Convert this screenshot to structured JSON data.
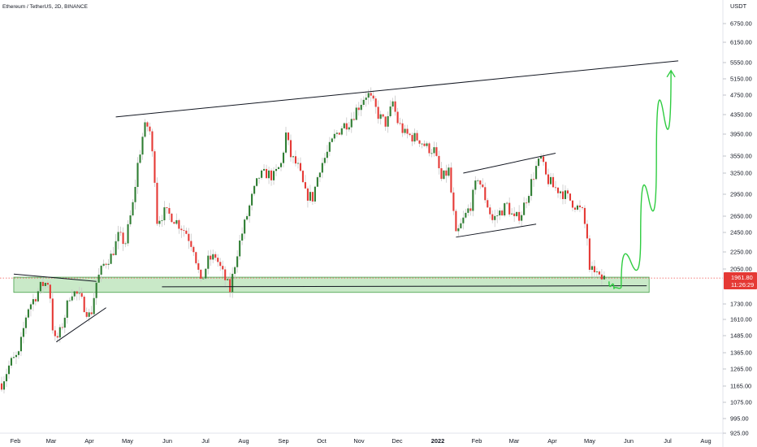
{
  "header": {
    "title": "Ethereum / TetherUS, 2D, BINANCE"
  },
  "price_axis": {
    "unit": "USDT",
    "labels": [
      "6750.00",
      "6150.00",
      "5550.00",
      "5150.00",
      "4750.00",
      "4350.00",
      "3950.00",
      "3550.00",
      "3250.00",
      "2950.00",
      "2650.00",
      "2450.00",
      "2250.00",
      "2050.00",
      "1730.00",
      "1610.00",
      "1485.00",
      "1365.00",
      "1265.00",
      "1165.00",
      "1075.00",
      "995.00",
      "925.00"
    ],
    "last_price": "1961.80",
    "countdown": "11:26:29"
  },
  "time_axis": {
    "labels": [
      {
        "text": "Feb",
        "bold": false
      },
      {
        "text": "Mar",
        "bold": false
      },
      {
        "text": "Apr",
        "bold": false
      },
      {
        "text": "May",
        "bold": false
      },
      {
        "text": "Jun",
        "bold": false
      },
      {
        "text": "Jul",
        "bold": false
      },
      {
        "text": "Aug",
        "bold": false
      },
      {
        "text": "Sep",
        "bold": false
      },
      {
        "text": "Oct",
        "bold": false
      },
      {
        "text": "Nov",
        "bold": false
      },
      {
        "text": "Dec",
        "bold": false
      },
      {
        "text": "2022",
        "bold": true
      },
      {
        "text": "Feb",
        "bold": false
      },
      {
        "text": "Mar",
        "bold": false
      },
      {
        "text": "Apr",
        "bold": false
      },
      {
        "text": "May",
        "bold": false
      },
      {
        "text": "Jun",
        "bold": false
      },
      {
        "text": "Jul",
        "bold": false
      },
      {
        "text": "Aug",
        "bold": false
      }
    ]
  },
  "colors": {
    "up": "#26a69a",
    "up_body": "#2e7d32",
    "down": "#ef5350",
    "down_body": "#e53935",
    "wick": "#c8c8c8",
    "support_zone": "#b7e1b5",
    "support_zone_border": "#43a047",
    "trend_line": "#131722",
    "projection": "#2ecc40",
    "price_tag": "#e53935",
    "price_dotted": "#ef5350"
  },
  "chart_data": {
    "type": "candlestick",
    "title": "Ethereum / TetherUS, 2D, BINANCE",
    "x_range": [
      "2021-01-13",
      "2022-08-15"
    ],
    "y_scale": "log",
    "y_range": [
      925,
      6750
    ],
    "interval": "2D",
    "last_price": 1961.8,
    "support_zone": [
      1830,
      1970
    ],
    "close_path": [
      [
        "2021-01-13",
        1180
      ],
      [
        "2021-01-20",
        1300
      ],
      [
        "2021-01-27",
        1350
      ],
      [
        "2021-02-03",
        1690
      ],
      [
        "2021-02-09",
        1780
      ],
      [
        "2021-02-15",
        1900
      ],
      [
        "2021-02-21",
        1930
      ],
      [
        "2021-02-25",
        1440
      ],
      [
        "2021-03-01",
        1480
      ],
      [
        "2021-03-05",
        1600
      ],
      [
        "2021-03-11",
        1850
      ],
      [
        "2021-03-17",
        1800
      ],
      [
        "2021-03-23",
        1700
      ],
      [
        "2021-03-27",
        1620
      ],
      [
        "2021-04-01",
        1920
      ],
      [
        "2021-04-07",
        2100
      ],
      [
        "2021-04-13",
        2200
      ],
      [
        "2021-04-19",
        2400
      ],
      [
        "2021-04-25",
        2350
      ],
      [
        "2021-05-01",
        2800
      ],
      [
        "2021-05-05",
        3400
      ],
      [
        "2021-05-09",
        3900
      ],
      [
        "2021-05-12",
        4170
      ],
      [
        "2021-05-15",
        4000
      ],
      [
        "2021-05-19",
        3200
      ],
      [
        "2021-05-21",
        2600
      ],
      [
        "2021-05-27",
        2700
      ],
      [
        "2021-06-02",
        2650
      ],
      [
        "2021-06-08",
        2550
      ],
      [
        "2021-06-14",
        2450
      ],
      [
        "2021-06-20",
        2300
      ],
      [
        "2021-06-26",
        1900
      ],
      [
        "2021-07-02",
        2150
      ],
      [
        "2021-07-08",
        2200
      ],
      [
        "2021-07-14",
        2000
      ],
      [
        "2021-07-20",
        1850
      ],
      [
        "2021-07-26",
        2250
      ],
      [
        "2021-08-01",
        2550
      ],
      [
        "2021-08-07",
        2900
      ],
      [
        "2021-08-13",
        3200
      ],
      [
        "2021-08-19",
        3250
      ],
      [
        "2021-08-25",
        3200
      ],
      [
        "2021-08-31",
        3400
      ],
      [
        "2021-09-04",
        3950
      ],
      [
        "2021-09-08",
        3550
      ],
      [
        "2021-09-14",
        3350
      ],
      [
        "2021-09-20",
        2950
      ],
      [
        "2021-09-26",
        2900
      ],
      [
        "2021-10-02",
        3350
      ],
      [
        "2021-10-08",
        3600
      ],
      [
        "2021-10-14",
        3900
      ],
      [
        "2021-10-20",
        4100
      ],
      [
        "2021-10-26",
        4200
      ],
      [
        "2021-11-01",
        4450
      ],
      [
        "2021-11-07",
        4700
      ],
      [
        "2021-11-10",
        4800
      ],
      [
        "2021-11-14",
        4600
      ],
      [
        "2021-11-20",
        4300
      ],
      [
        "2021-11-26",
        4150
      ],
      [
        "2021-12-01",
        4600
      ],
      [
        "2021-12-05",
        4200
      ],
      [
        "2021-12-11",
        3950
      ],
      [
        "2021-12-17",
        3900
      ],
      [
        "2021-12-23",
        3850
      ],
      [
        "2021-12-29",
        3700
      ],
      [
        "2022-01-04",
        3650
      ],
      [
        "2022-01-10",
        3150
      ],
      [
        "2022-01-16",
        3300
      ],
      [
        "2022-01-22",
        2400
      ],
      [
        "2022-01-28",
        2600
      ],
      [
        "2022-02-03",
        2800
      ],
      [
        "2022-02-09",
        3200
      ],
      [
        "2022-02-15",
        2900
      ],
      [
        "2022-02-21",
        2600
      ],
      [
        "2022-02-27",
        2700
      ],
      [
        "2022-03-05",
        2800
      ],
      [
        "2022-03-11",
        2600
      ],
      [
        "2022-03-17",
        2700
      ],
      [
        "2022-03-23",
        3000
      ],
      [
        "2022-03-29",
        3350
      ],
      [
        "2022-04-02",
        3500
      ],
      [
        "2022-04-06",
        3200
      ],
      [
        "2022-04-12",
        3050
      ],
      [
        "2022-04-18",
        3000
      ],
      [
        "2022-04-24",
        2900
      ],
      [
        "2022-04-30",
        2800
      ],
      [
        "2022-05-06",
        2700
      ],
      [
        "2022-05-10",
        2400
      ],
      [
        "2022-05-12",
        2000
      ],
      [
        "2022-05-16",
        2050
      ],
      [
        "2022-05-20",
        1950
      ],
      [
        "2022-05-24",
        1961.8
      ]
    ],
    "trendlines": [
      {
        "from": [
          "2021-04-17",
          4300
        ],
        "to": [
          "2022-07-24",
          5600
        ]
      },
      {
        "from": [
          "2022-01-28",
          3250
        ],
        "to": [
          "2022-04-14",
          3600
        ]
      },
      {
        "from": [
          "2022-01-22",
          2400
        ],
        "to": [
          "2022-03-29",
          2550
        ]
      },
      {
        "from": [
          "2021-01-23",
          2000
        ],
        "to": [
          "2021-04-01",
          1930
        ]
      },
      {
        "from": [
          "2021-02-27",
          1440
        ],
        "to": [
          "2021-04-09",
          1700
        ]
      },
      {
        "from": [
          "2021-05-25",
          1880
        ],
        "to": [
          "2022-06-28",
          1890
        ]
      }
    ],
    "projection": [
      [
        "2022-05-28",
        1930
      ],
      [
        "2022-06-01",
        1860
      ],
      [
        "2022-06-07",
        1880
      ],
      [
        "2022-06-23",
        2400
      ],
      [
        "2022-07-06",
        3500
      ],
      [
        "2022-07-18",
        5350
      ]
    ]
  }
}
